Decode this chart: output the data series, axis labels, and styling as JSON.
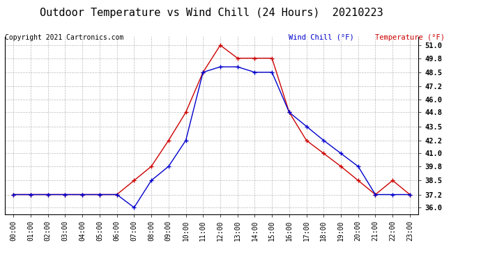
{
  "title": "Outdoor Temperature vs Wind Chill (24 Hours)  20210223",
  "copyright": "Copyright 2021 Cartronics.com",
  "legend_wind_chill": "Wind Chill (°F)",
  "legend_temperature": "Temperature (°F)",
  "hours": [
    0,
    1,
    2,
    3,
    4,
    5,
    6,
    7,
    8,
    9,
    10,
    11,
    12,
    13,
    14,
    15,
    16,
    17,
    18,
    19,
    20,
    21,
    22,
    23
  ],
  "temperature": [
    37.2,
    37.2,
    37.2,
    37.2,
    37.2,
    37.2,
    37.2,
    38.5,
    39.8,
    42.2,
    44.8,
    48.5,
    51.0,
    49.8,
    49.8,
    49.8,
    44.8,
    42.2,
    41.0,
    39.8,
    38.5,
    37.2,
    38.5,
    37.2
  ],
  "wind_chill": [
    37.2,
    37.2,
    37.2,
    37.2,
    37.2,
    37.2,
    37.2,
    36.0,
    38.5,
    39.8,
    42.2,
    48.5,
    49.0,
    49.0,
    48.5,
    48.5,
    44.8,
    43.5,
    42.2,
    41.0,
    39.8,
    37.2,
    37.2,
    37.2
  ],
  "temp_color": "#cc0000",
  "wind_color": "#0000cc",
  "ylim_min": 35.4,
  "ylim_max": 51.8,
  "yticks": [
    36.0,
    37.2,
    38.5,
    39.8,
    41.0,
    42.2,
    43.5,
    44.8,
    46.0,
    47.2,
    48.5,
    49.8,
    51.0
  ],
  "background_color": "#ffffff",
  "grid_color": "#aaaaaa",
  "title_fontsize": 11,
  "tick_fontsize": 7,
  "legend_fontsize": 7.5,
  "copyright_fontsize": 7
}
